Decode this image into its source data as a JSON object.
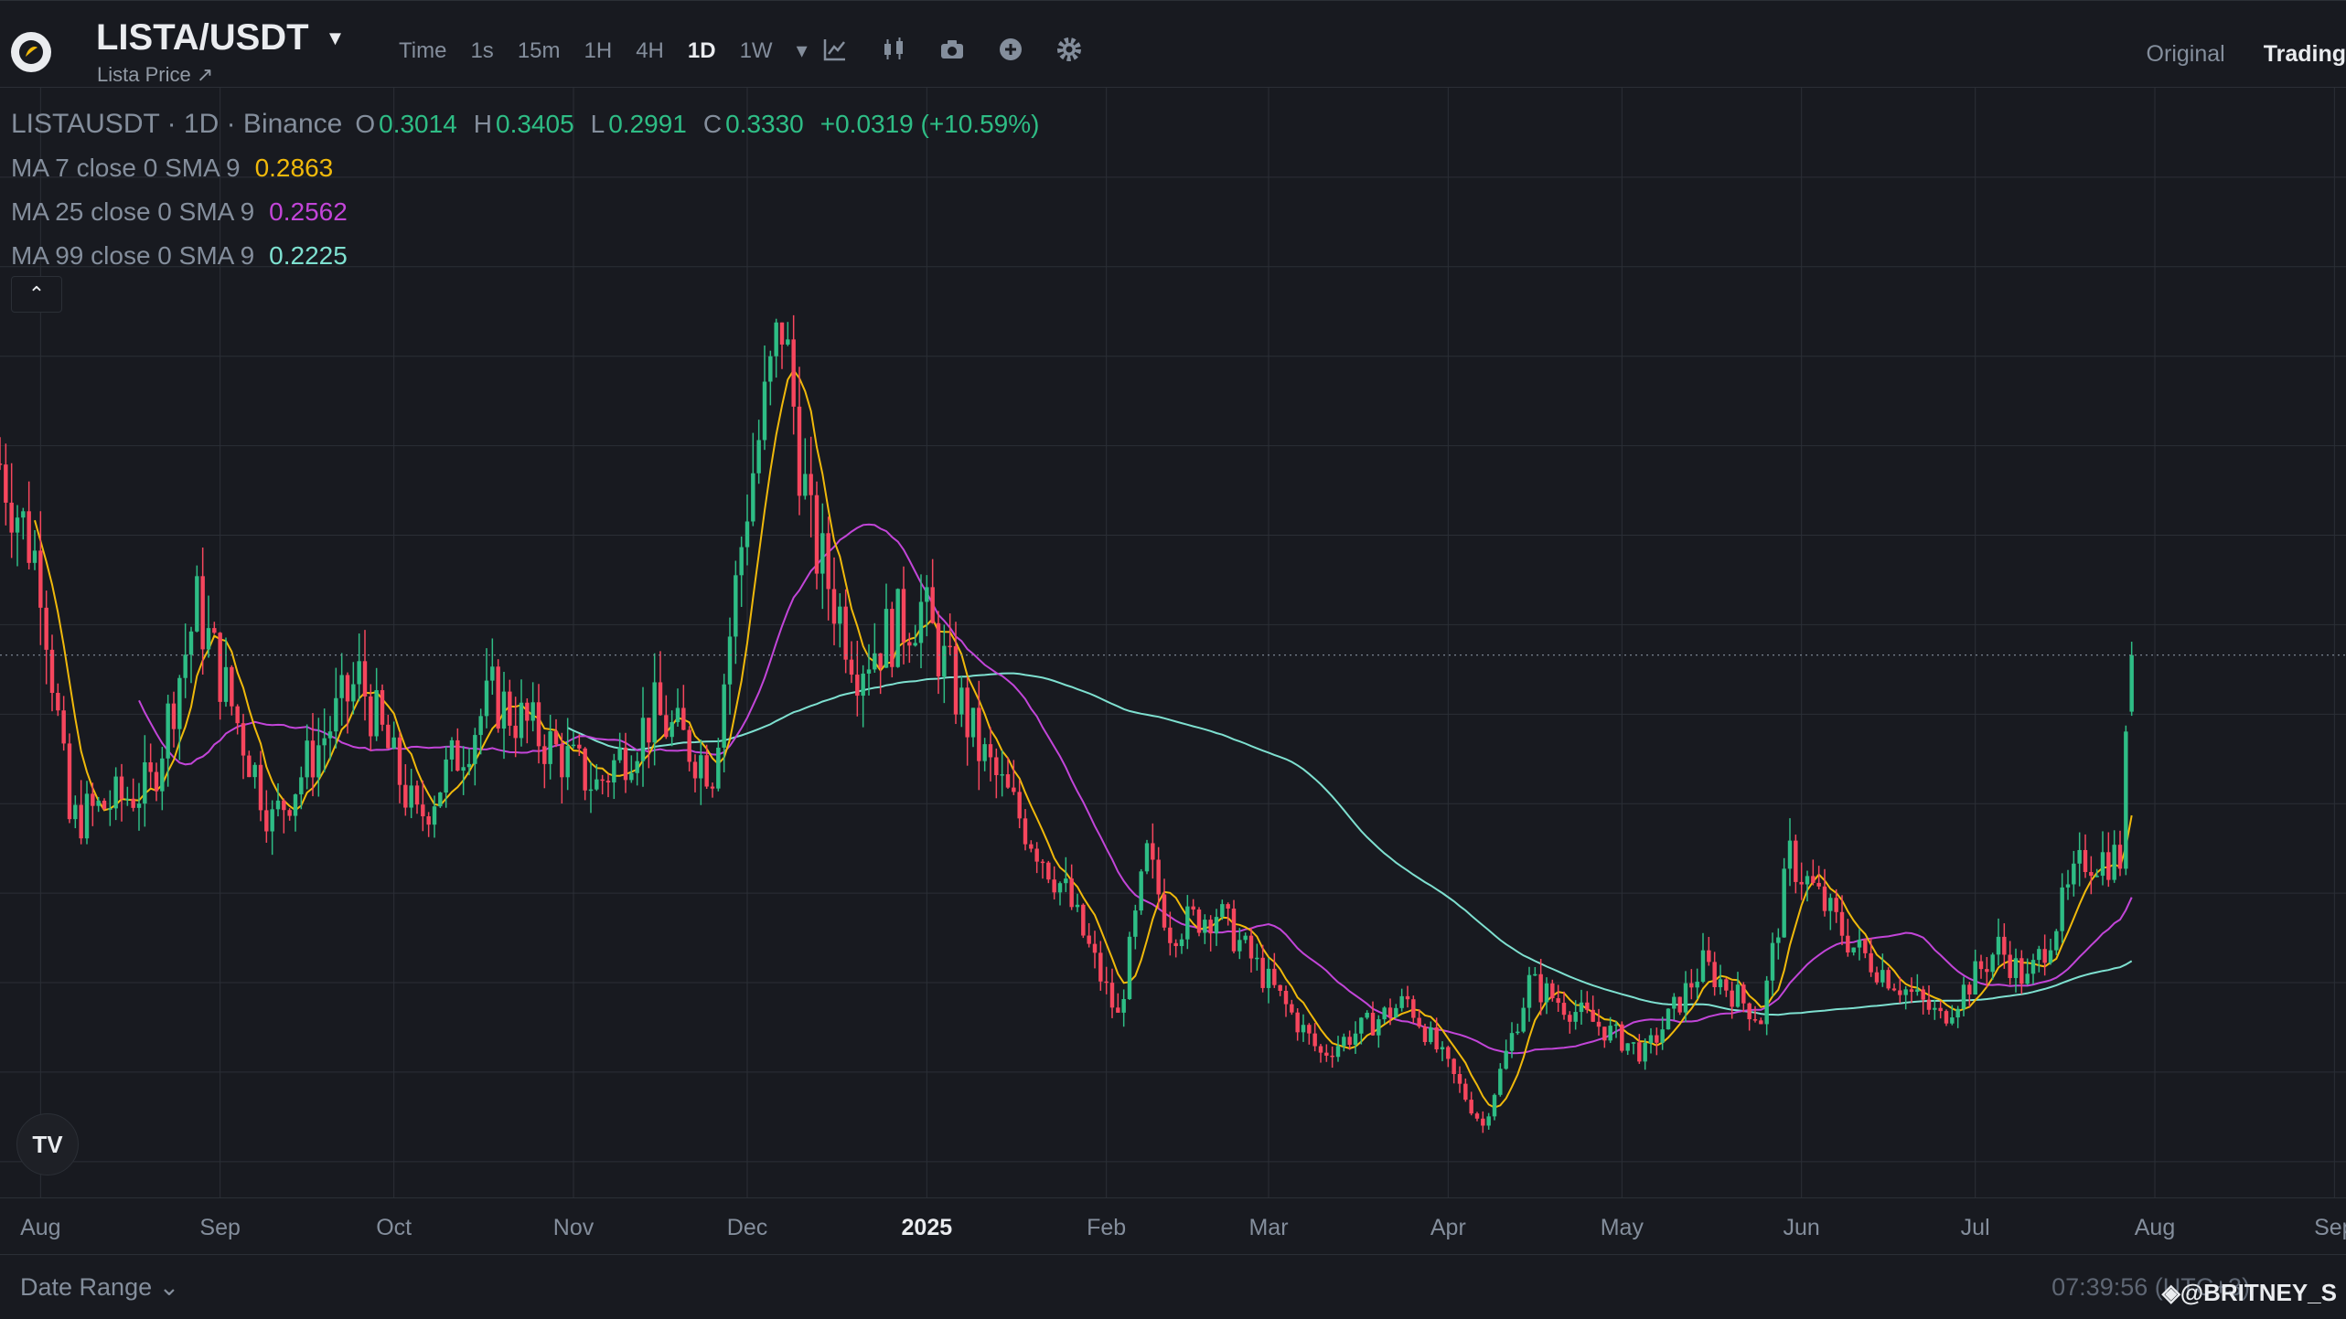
{
  "header": {
    "symbol": "LISTA/USDT",
    "subtitle": "Lista Price ↗",
    "intervals": [
      "Time",
      "1s",
      "15m",
      "1H",
      "4H",
      "1D",
      "1W"
    ],
    "active_interval": "1D",
    "view_tabs": [
      "Original",
      "Trading"
    ]
  },
  "legend": {
    "title": "LISTAUSDT · 1D · Binance",
    "open_label": "O",
    "open": "0.3014",
    "high_label": "H",
    "high": "0.3405",
    "low_label": "L",
    "low": "0.2991",
    "close_label": "C",
    "close": "0.3330",
    "change": "+0.0319 (+10.59%)",
    "ma7_label": "MA 7 close 0 SMA 9",
    "ma7_value": "0.2863",
    "ma25_label": "MA 25 close 0 SMA 9",
    "ma25_value": "0.2562",
    "ma99_label": "MA 99 close 0 SMA 9",
    "ma99_value": "0.2225"
  },
  "colors": {
    "up": "#2ebd85",
    "down": "#f6465d",
    "ma7": "#f0b90b",
    "ma25": "#c245d8",
    "ma99": "#7ee0d0",
    "background": "#181a20",
    "grid": "#2b2f36"
  },
  "xaxis": {
    "labels": [
      "Aug",
      "Sep",
      "Oct",
      "Nov",
      "Dec",
      "2025",
      "Feb",
      "Mar",
      "Apr",
      "May",
      "Jun",
      "Jul",
      "Aug",
      "Sep"
    ],
    "bold_label": "2025"
  },
  "footer": {
    "date_range": "Date Range ⌄",
    "clock": "07:39:56 (UTC+3)",
    "watermark": "◈@BRITNEY_S"
  },
  "chart_data": {
    "type": "candlestick",
    "symbol": "LISTAUSDT",
    "interval": "1D",
    "last_close": 0.333,
    "ma": [
      {
        "name": "MA 7",
        "value": 0.2863
      },
      {
        "name": "MA 25",
        "value": 0.2562
      },
      {
        "name": "MA 99",
        "value": 0.2225
      }
    ],
    "price_anchors": [
      {
        "date": "2024-07-25",
        "close": 0.44
      },
      {
        "date": "2024-08-01",
        "close": 0.38
      },
      {
        "date": "2024-08-06",
        "close": 0.24
      },
      {
        "date": "2024-08-20",
        "close": 0.26
      },
      {
        "date": "2024-08-28",
        "close": 0.36
      },
      {
        "date": "2024-09-10",
        "close": 0.24
      },
      {
        "date": "2024-09-25",
        "close": 0.32
      },
      {
        "date": "2024-10-05",
        "close": 0.24
      },
      {
        "date": "2024-10-18",
        "close": 0.31
      },
      {
        "date": "2024-11-05",
        "close": 0.26
      },
      {
        "date": "2024-11-15",
        "close": 0.3
      },
      {
        "date": "2024-11-25",
        "close": 0.27
      },
      {
        "date": "2024-12-01",
        "close": 0.42
      },
      {
        "date": "2024-12-07",
        "close": 0.52
      },
      {
        "date": "2024-12-12",
        "close": 0.4
      },
      {
        "date": "2024-12-20",
        "close": 0.33
      },
      {
        "date": "2024-12-31",
        "close": 0.36
      },
      {
        "date": "2025-01-10",
        "close": 0.28
      },
      {
        "date": "2025-01-25",
        "close": 0.2
      },
      {
        "date": "2025-02-03",
        "close": 0.13
      },
      {
        "date": "2025-02-08",
        "close": 0.22
      },
      {
        "date": "2025-02-12",
        "close": 0.18
      },
      {
        "date": "2025-02-20",
        "close": 0.19
      },
      {
        "date": "2025-03-10",
        "close": 0.11
      },
      {
        "date": "2025-03-25",
        "close": 0.14
      },
      {
        "date": "2025-04-07",
        "close": 0.07
      },
      {
        "date": "2025-04-15",
        "close": 0.15
      },
      {
        "date": "2025-05-05",
        "close": 0.11
      },
      {
        "date": "2025-05-15",
        "close": 0.16
      },
      {
        "date": "2025-05-25",
        "close": 0.13
      },
      {
        "date": "2025-05-30",
        "close": 0.22
      },
      {
        "date": "2025-06-10",
        "close": 0.17
      },
      {
        "date": "2025-06-25",
        "close": 0.13
      },
      {
        "date": "2025-07-05",
        "close": 0.17
      },
      {
        "date": "2025-07-10",
        "close": 0.15
      },
      {
        "date": "2025-07-20",
        "close": 0.22
      },
      {
        "date": "2025-07-26",
        "close": 0.22
      },
      {
        "date": "2025-07-28",
        "close": 0.333
      }
    ],
    "axis": {
      "x_start": "2024-07-25",
      "x_end": "2025-09-03",
      "y_range": [
        0.03,
        0.65
      ]
    }
  }
}
